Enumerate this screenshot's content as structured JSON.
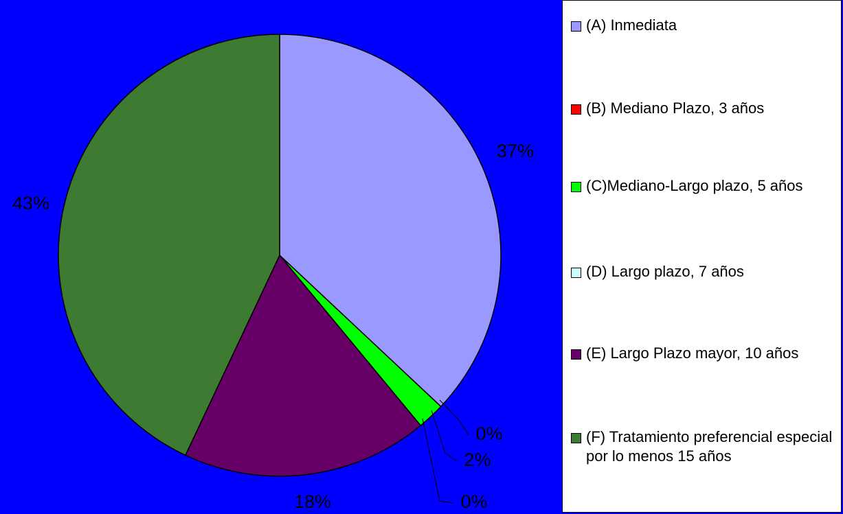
{
  "chart_data": {
    "type": "pie",
    "categories": [
      "(A) Inmediata",
      "(B) Mediano Plazo, 3 años",
      "(C)Mediano-Largo plazo, 5 años",
      "(D) Largo plazo, 7 años",
      "(E) Largo Plazo mayor, 10 años",
      "(F) Tratamiento preferencial especial por lo menos 15 años"
    ],
    "values": [
      37,
      0,
      2,
      0,
      18,
      43
    ],
    "value_labels": [
      "37%",
      "0%",
      "2%",
      "0%",
      "18%",
      "43%"
    ],
    "colors": [
      "#9999ff",
      "#ff0000",
      "#00ff00",
      "#ccffff",
      "#660066",
      "#3d7a32"
    ],
    "legend": "right"
  }
}
